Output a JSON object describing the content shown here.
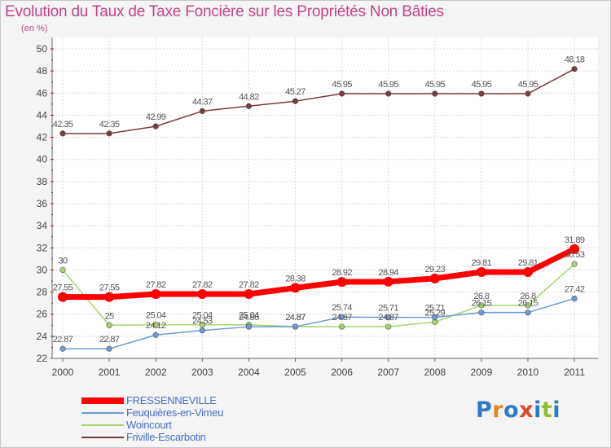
{
  "title": "Evolution du Taux de Taxe Foncière sur les Propriétés Non Bâties",
  "unit": "(en %)",
  "logo": {
    "text": "Proxiti",
    "colors": [
      "#2e7cc4",
      "#e0891c",
      "#2e7cc4",
      "#d94c2e",
      "#2e7cc4",
      "#8fbf2d",
      "#2e7cc4"
    ]
  },
  "chart_data": {
    "type": "line",
    "x": [
      "2000",
      "2001",
      "2002",
      "2003",
      "2004",
      "2005",
      "2006",
      "2007",
      "2008",
      "2009",
      "2010",
      "2011"
    ],
    "ylim": [
      22,
      50
    ],
    "yticks": [
      "22",
      "24",
      "26",
      "28",
      "30",
      "32",
      "34",
      "36",
      "38",
      "40",
      "42",
      "44",
      "46",
      "48",
      "50"
    ],
    "grid": true,
    "legend_position": "bottom-left",
    "series": [
      {
        "name": "FRESSENNEVILLE",
        "color": "#ff0000",
        "values": [
          27.55,
          27.55,
          27.82,
          27.82,
          27.82,
          28.38,
          28.92,
          28.94,
          29.23,
          29.81,
          29.81,
          31.89
        ],
        "labels": [
          "27.55",
          "27.55",
          "27.82",
          "27.82",
          "27.82",
          "28.38",
          "28.92",
          "28.94",
          "29.23",
          "29.81",
          "29.81",
          "31.89"
        ]
      },
      {
        "name": "Feuquières-en-Vimeu",
        "color": "#6b9bd1",
        "values": [
          22.87,
          22.87,
          24.12,
          24.53,
          24.86,
          24.87,
          25.74,
          25.71,
          25.71,
          26.15,
          26.15,
          27.42
        ],
        "labels": [
          "22.87",
          "22.87",
          "24.12",
          "24.53",
          "24.86",
          "24.87",
          "25.74",
          "25.71",
          "25.71",
          "26.15",
          "26.15",
          "27.42"
        ]
      },
      {
        "name": "Woincourt",
        "color": "#a6d66a",
        "values": [
          30,
          25,
          25.04,
          25.04,
          25.04,
          24.87,
          24.87,
          24.87,
          25.29,
          26.8,
          26.8,
          30.53
        ],
        "labels": [
          "30",
          "25",
          "25.04",
          "25.04",
          "25.04",
          "24.87",
          "24.87",
          "24.87",
          "25.29",
          "26.8",
          "26.8",
          "30.53"
        ]
      },
      {
        "name": "Friville-Escarbotin",
        "color": "#7a3b3b",
        "values": [
          42.35,
          42.35,
          42.99,
          44.37,
          44.82,
          45.27,
          45.95,
          45.95,
          45.95,
          45.95,
          45.95,
          48.18
        ],
        "labels": [
          "42.35",
          "42.35",
          "42.99",
          "44.37",
          "44.82",
          "45.27",
          "45.95",
          "45.95",
          "45.95",
          "45.95",
          "45.95",
          "48.18"
        ]
      }
    ]
  }
}
